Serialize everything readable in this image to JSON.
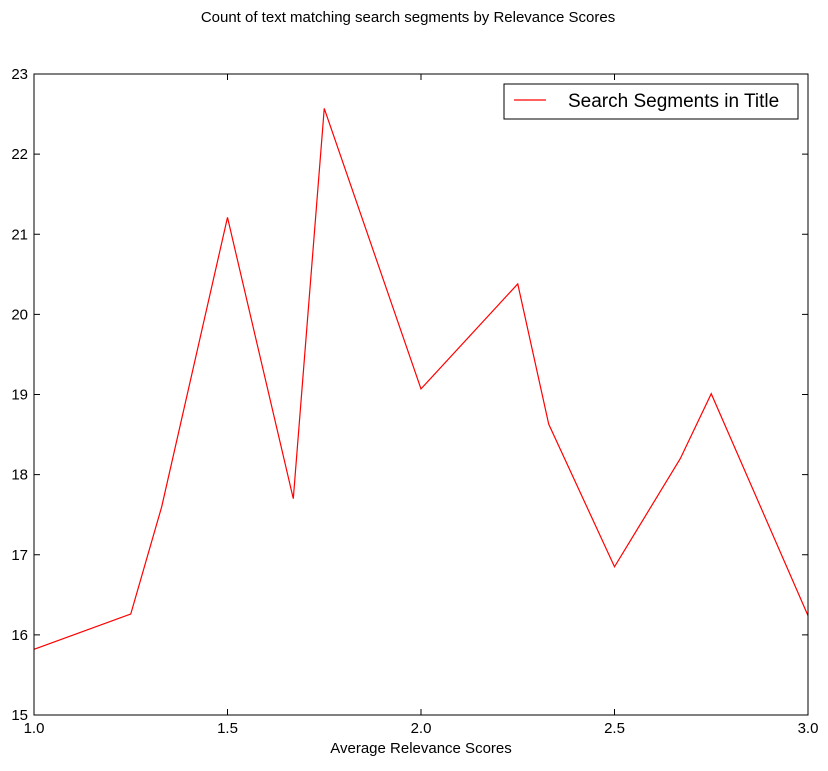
{
  "chart_data": {
    "type": "line",
    "title": "Count of text matching search segments by Relevance Scores",
    "xlabel": "Average Relevance Scores",
    "ylabel": "",
    "xlim": [
      1.0,
      3.0
    ],
    "ylim": [
      15,
      23
    ],
    "x_ticks": [
      "1.0",
      "1.5",
      "2.0",
      "2.5",
      "3.0"
    ],
    "y_ticks": [
      "15",
      "16",
      "17",
      "18",
      "19",
      "20",
      "21",
      "22",
      "23"
    ],
    "grid": false,
    "legend_position": "top-right",
    "series": [
      {
        "name": "Search Segments in Title",
        "color": "#ff0000",
        "x": [
          1.0,
          1.25,
          1.33,
          1.5,
          1.67,
          1.75,
          2.0,
          2.25,
          2.33,
          2.5,
          2.67,
          2.75,
          3.0
        ],
        "y": [
          15.82,
          16.26,
          17.6,
          21.21,
          17.7,
          22.57,
          19.07,
          20.38,
          18.63,
          16.85,
          18.2,
          19.01,
          16.24
        ]
      }
    ]
  }
}
